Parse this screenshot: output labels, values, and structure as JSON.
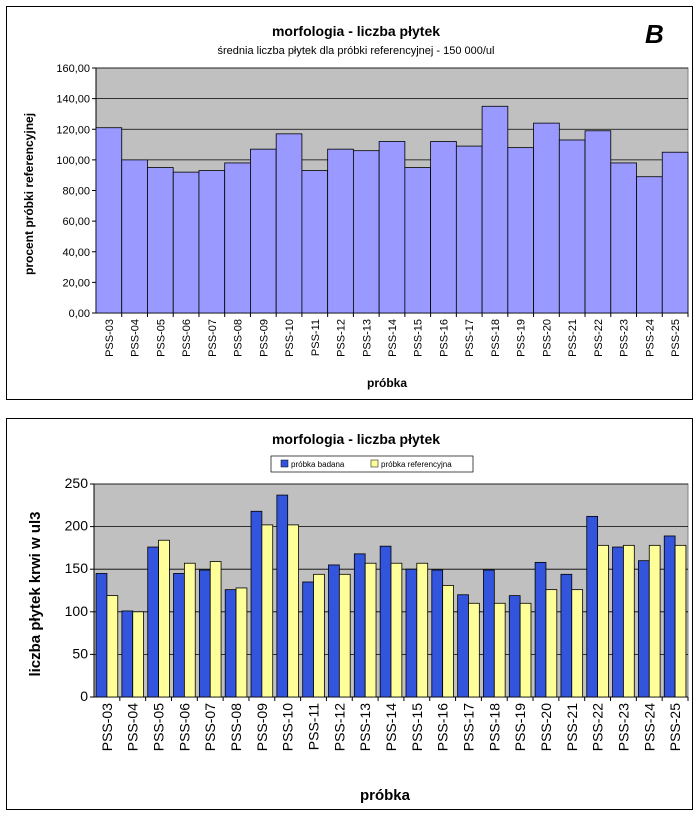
{
  "panel_label": "B",
  "chart_data": [
    {
      "type": "bar",
      "title": "morfologia - liczba płytek",
      "subtitle": "średnia liczba płytek dla próbki referencyjnej - 150 000/ul",
      "xlabel": "próbka",
      "ylabel": "procent próbki referencyjnej",
      "ylim": [
        0,
        160
      ],
      "y_ticks": [
        "0,00",
        "20,00",
        "40,00",
        "60,00",
        "80,00",
        "100,00",
        "120,00",
        "140,00",
        "160,00"
      ],
      "categories": [
        "PSS-03",
        "PSS-04",
        "PSS-05",
        "PSS-06",
        "PSS-07",
        "PSS-08",
        "PSS-09",
        "PSS-10",
        "PSS-11",
        "PSS-12",
        "PSS-13",
        "PSS-14",
        "PSS-15",
        "PSS-16",
        "PSS-17",
        "PSS-18",
        "PSS-19",
        "PSS-20",
        "PSS-21",
        "PSS-22",
        "PSS-23",
        "PSS-24",
        "PSS-25"
      ],
      "values": [
        121,
        100,
        95,
        92,
        93,
        98,
        107,
        117,
        93,
        107,
        106,
        112,
        95,
        112,
        109,
        135,
        108,
        124,
        113,
        119,
        98,
        89,
        105
      ],
      "bar_color": "#9999ff",
      "plot_background": "#c0c0c0",
      "grid": true
    },
    {
      "type": "bar",
      "title": "morfologia - liczba płytek",
      "xlabel": "próbka",
      "ylabel": "liczba płytek krwi w ul3",
      "ylim": [
        0,
        250
      ],
      "y_ticks": [
        "0",
        "50",
        "100",
        "150",
        "200",
        "250"
      ],
      "legend_position": "top",
      "categories": [
        "PSS-03",
        "PSS-04",
        "PSS-05",
        "PSS-06",
        "PSS-07",
        "PSS-08",
        "PSS-09",
        "PSS-10",
        "PSS-11",
        "PSS-12",
        "PSS-13",
        "PSS-14",
        "PSS-15",
        "PSS-16",
        "PSS-17",
        "PSS-18",
        "PSS-19",
        "PSS-20",
        "PSS-21",
        "PSS-22",
        "PSS-23",
        "PSS-24",
        "PSS-25"
      ],
      "series": [
        {
          "name": "próbka badana",
          "color": "#3355dd",
          "values": [
            145,
            101,
            176,
            145,
            149,
            126,
            218,
            237,
            135,
            155,
            168,
            177,
            150,
            149,
            120,
            149,
            119,
            158,
            144,
            212,
            176,
            160,
            189
          ]
        },
        {
          "name": "próbka referencyjna",
          "color": "#ffff99",
          "values": [
            119,
            100,
            184,
            157,
            159,
            128,
            202,
            202,
            144,
            144,
            157,
            157,
            157,
            131,
            110,
            110,
            110,
            126,
            126,
            178,
            178,
            178,
            178
          ]
        }
      ],
      "plot_background": "#c0c0c0",
      "grid": true
    }
  ]
}
